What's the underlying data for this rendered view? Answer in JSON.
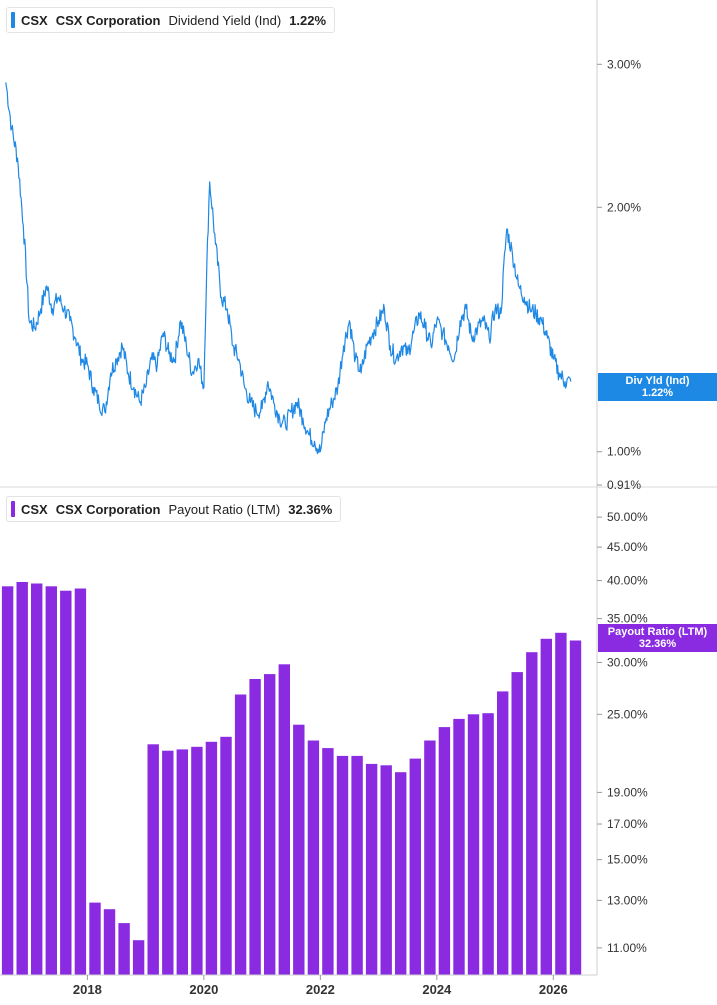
{
  "chart_data": [
    {
      "type": "line",
      "legend": {
        "ticker": "CSX",
        "company": "CSX Corporation",
        "metric": "Dividend Yield (Ind)",
        "value": "1.22%"
      },
      "end_label": {
        "line1": "Div Yld (Ind)",
        "line2": "1.22%"
      },
      "color": "#1e88e5",
      "y_scale": "log",
      "ylim": [
        0.91,
        3.6
      ],
      "y_ticks": [
        {
          "value": 3.0,
          "label": "3.00%"
        },
        {
          "value": 2.0,
          "label": "2.00%"
        },
        {
          "value": 1.0,
          "label": "1.00%"
        },
        {
          "value": 0.91,
          "label": "0.91%"
        }
      ],
      "series": [
        {
          "x": [
            2016.6,
            2016.7,
            2016.8,
            2016.9,
            2017.0,
            2017.1,
            2017.2,
            2017.3,
            2017.4,
            2017.5,
            2017.6,
            2017.7,
            2017.8,
            2017.9,
            2018.0,
            2018.1,
            2018.2,
            2018.3,
            2018.4,
            2018.5,
            2018.6,
            2018.7,
            2018.8,
            2018.9,
            2019.0,
            2019.1,
            2019.2,
            2019.3,
            2019.4,
            2019.5,
            2019.6,
            2019.7,
            2019.8,
            2019.9,
            2020.0,
            2020.1,
            2020.2,
            2020.3,
            2020.4,
            2020.5,
            2020.6,
            2020.7,
            2020.8,
            2020.9,
            2021.0,
            2021.1,
            2021.2,
            2021.3,
            2021.4,
            2021.5,
            2021.6,
            2021.7,
            2021.8,
            2021.9,
            2022.0,
            2022.1,
            2022.2,
            2022.3,
            2022.4,
            2022.5,
            2022.6,
            2022.7,
            2022.8,
            2022.9,
            2023.0,
            2023.1,
            2023.2,
            2023.3,
            2023.4,
            2023.5,
            2023.6,
            2023.7,
            2023.8,
            2023.9,
            2024.0,
            2024.1,
            2024.2,
            2024.3,
            2024.4,
            2024.5,
            2024.6,
            2024.7,
            2024.8,
            2024.9,
            2025.0,
            2025.1,
            2025.2,
            2025.3,
            2025.4,
            2025.5,
            2025.6,
            2025.7,
            2025.8,
            2025.9,
            2026.0,
            2026.1,
            2026.2,
            2026.3
          ],
          "values": [
            2.85,
            2.5,
            2.3,
            1.9,
            1.45,
            1.42,
            1.5,
            1.6,
            1.5,
            1.55,
            1.5,
            1.45,
            1.38,
            1.3,
            1.28,
            1.2,
            1.15,
            1.12,
            1.25,
            1.3,
            1.35,
            1.25,
            1.2,
            1.15,
            1.2,
            1.3,
            1.28,
            1.4,
            1.32,
            1.3,
            1.45,
            1.35,
            1.25,
            1.3,
            1.2,
            2.15,
            1.8,
            1.55,
            1.5,
            1.35,
            1.3,
            1.2,
            1.15,
            1.12,
            1.13,
            1.22,
            1.15,
            1.1,
            1.08,
            1.12,
            1.15,
            1.1,
            1.05,
            1.03,
            1.0,
            1.1,
            1.15,
            1.2,
            1.35,
            1.45,
            1.3,
            1.25,
            1.35,
            1.4,
            1.45,
            1.5,
            1.35,
            1.3,
            1.35,
            1.32,
            1.4,
            1.48,
            1.42,
            1.35,
            1.45,
            1.4,
            1.35,
            1.3,
            1.45,
            1.5,
            1.38,
            1.42,
            1.45,
            1.38,
            1.5,
            1.48,
            1.88,
            1.75,
            1.6,
            1.55,
            1.5,
            1.48,
            1.45,
            1.38,
            1.3,
            1.25,
            1.22,
            1.22
          ]
        }
      ]
    },
    {
      "type": "bar",
      "legend": {
        "ticker": "CSX",
        "company": "CSX Corporation",
        "metric": "Payout Ratio (LTM)",
        "value": "32.36%"
      },
      "end_label": {
        "line1": "Payout Ratio (LTM)",
        "line2": "32.36%"
      },
      "color": "#8a2be2",
      "y_scale": "log",
      "ylim": [
        10.0,
        55.0
      ],
      "y_ticks": [
        {
          "value": 50,
          "label": "50.00%"
        },
        {
          "value": 45,
          "label": "45.00%"
        },
        {
          "value": 40,
          "label": "40.00%"
        },
        {
          "value": 35,
          "label": "35.00%"
        },
        {
          "value": 30,
          "label": "30.00%"
        },
        {
          "value": 25,
          "label": "25.00%"
        },
        {
          "value": 19,
          "label": "19.00%"
        },
        {
          "value": 17,
          "label": "17.00%"
        },
        {
          "value": 15,
          "label": "15.00%"
        },
        {
          "value": 13,
          "label": "13.00%"
        },
        {
          "value": 11,
          "label": "11.00%"
        }
      ],
      "series": [
        {
          "x": [
            2016.63,
            2016.88,
            2017.13,
            2017.38,
            2017.63,
            2017.88,
            2018.13,
            2018.38,
            2018.63,
            2018.88,
            2019.13,
            2019.38,
            2019.63,
            2019.88,
            2020.13,
            2020.38,
            2020.63,
            2020.88,
            2021.13,
            2021.38,
            2021.63,
            2021.88,
            2022.13,
            2022.38,
            2022.63,
            2022.88,
            2023.13,
            2023.38,
            2023.63,
            2023.88,
            2024.13,
            2024.38,
            2024.63,
            2024.88,
            2025.13,
            2025.38,
            2025.63,
            2025.88,
            2026.13,
            2026.38
          ],
          "values": [
            39.2,
            39.8,
            39.6,
            39.2,
            38.6,
            38.9,
            12.9,
            12.6,
            12.0,
            11.3,
            22.5,
            22.0,
            22.1,
            22.3,
            22.7,
            23.1,
            26.8,
            28.3,
            28.8,
            29.8,
            24.1,
            22.8,
            22.2,
            21.6,
            21.6,
            21.0,
            20.9,
            20.4,
            21.4,
            22.8,
            23.9,
            24.6,
            25.0,
            25.1,
            27.1,
            29.0,
            31.1,
            32.6,
            33.3,
            32.4
          ]
        }
      ]
    }
  ],
  "x_axis": {
    "xlim": [
      2016.5,
      2026.75
    ],
    "ticks": [
      {
        "value": 2018,
        "label": "2018"
      },
      {
        "value": 2020,
        "label": "2020"
      },
      {
        "value": 2022,
        "label": "2022"
      },
      {
        "value": 2024,
        "label": "2024"
      },
      {
        "value": 2026,
        "label": "2026"
      }
    ]
  }
}
